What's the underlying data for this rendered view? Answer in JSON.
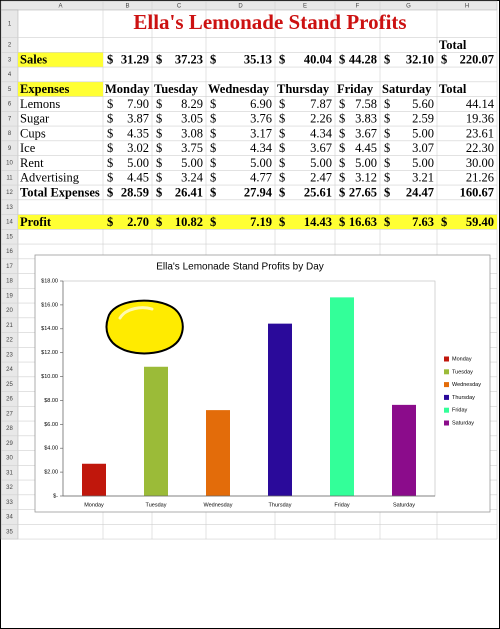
{
  "sheet": {
    "columns": [
      "A",
      "B",
      "C",
      "D",
      "E",
      "F",
      "G",
      "H"
    ],
    "row_numbers": [
      1,
      2,
      3,
      4,
      5,
      6,
      7,
      8,
      9,
      10,
      11,
      12,
      13,
      14,
      15,
      16,
      17,
      18,
      19,
      20,
      21,
      22,
      23,
      24,
      25,
      26,
      27,
      28,
      29,
      30,
      31,
      32,
      33,
      34,
      35
    ],
    "title": "Ella's Lemonade Stand Profits",
    "grid": [
      [
        null,
        null,
        null,
        null,
        null,
        null,
        null,
        "Total"
      ],
      [
        "Sales",
        [
          "$",
          "31.29"
        ],
        [
          "$",
          "37.23"
        ],
        [
          "$",
          "35.13"
        ],
        [
          "$",
          "40.04"
        ],
        [
          "$",
          "44.28"
        ],
        [
          "$",
          "32.10"
        ],
        [
          "$",
          "220.07"
        ]
      ],
      [
        null,
        null,
        null,
        null,
        null,
        null,
        null,
        null
      ],
      [
        "Expenses",
        "Monday",
        "Tuesday",
        "Wednesday",
        "Thursday",
        "Friday",
        "Saturday",
        "Total"
      ],
      [
        "Lemons",
        [
          "$",
          "7.90"
        ],
        [
          "$",
          "8.29"
        ],
        [
          "$",
          "6.90"
        ],
        [
          "$",
          "7.87"
        ],
        [
          "$",
          "7.58"
        ],
        [
          "$",
          "5.60"
        ],
        "44.14"
      ],
      [
        "Sugar",
        [
          "$",
          "3.87"
        ],
        [
          "$",
          "3.05"
        ],
        [
          "$",
          "3.76"
        ],
        [
          "$",
          "2.26"
        ],
        [
          "$",
          "3.83"
        ],
        [
          "$",
          "2.59"
        ],
        "19.36"
      ],
      [
        "Cups",
        [
          "$",
          "4.35"
        ],
        [
          "$",
          "3.08"
        ],
        [
          "$",
          "3.17"
        ],
        [
          "$",
          "4.34"
        ],
        [
          "$",
          "3.67"
        ],
        [
          "$",
          "5.00"
        ],
        "23.61"
      ],
      [
        "Ice",
        [
          "$",
          "3.02"
        ],
        [
          "$",
          "3.75"
        ],
        [
          "$",
          "4.34"
        ],
        [
          "$",
          "3.67"
        ],
        [
          "$",
          "4.45"
        ],
        [
          "$",
          "3.07"
        ],
        "22.30"
      ],
      [
        "Rent",
        [
          "$",
          "5.00"
        ],
        [
          "$",
          "5.00"
        ],
        [
          "$",
          "5.00"
        ],
        [
          "$",
          "5.00"
        ],
        [
          "$",
          "5.00"
        ],
        [
          "$",
          "5.00"
        ],
        "30.00"
      ],
      [
        "Advertising",
        [
          "$",
          "4.45"
        ],
        [
          "$",
          "3.24"
        ],
        [
          "$",
          "4.77"
        ],
        [
          "$",
          "2.47"
        ],
        [
          "$",
          "3.12"
        ],
        [
          "$",
          "3.21"
        ],
        "21.26"
      ],
      [
        "Total Expenses",
        [
          "$",
          "28.59"
        ],
        [
          "$",
          "26.41"
        ],
        [
          "$",
          "27.94"
        ],
        [
          "$",
          "25.61"
        ],
        [
          "$",
          "27.65"
        ],
        [
          "$",
          "24.47"
        ],
        "160.67"
      ],
      [
        null,
        null,
        null,
        null,
        null,
        null,
        null,
        null
      ],
      [
        "Profit",
        [
          "$",
          "2.70"
        ],
        [
          "$",
          "10.82"
        ],
        [
          "$",
          "7.19"
        ],
        [
          "$",
          "14.43"
        ],
        [
          "$",
          "16.63"
        ],
        [
          "$",
          "7.63"
        ],
        [
          "$",
          "59.40"
        ]
      ]
    ]
  },
  "chart_data": {
    "type": "bar",
    "title": "Ella's Lemonade Stand Profits by Day",
    "categories": [
      "Monday",
      "Tuesday",
      "Wednesday",
      "Thursday",
      "Friday",
      "Saturday"
    ],
    "values": [
      2.7,
      10.82,
      7.19,
      14.43,
      16.63,
      7.63
    ],
    "colors": [
      "#c0170c",
      "#9bbb38",
      "#e36c0a",
      "#2a0a9a",
      "#33ff99",
      "#8b0c8b"
    ],
    "ylim": [
      0,
      18
    ],
    "yticks": [
      {
        "value": 0,
        "label": "$-"
      },
      {
        "value": 2,
        "label": "$2.00"
      },
      {
        "value": 4,
        "label": "$4.00"
      },
      {
        "value": 6,
        "label": "$6.00"
      },
      {
        "value": 8,
        "label": "$8.00"
      },
      {
        "value": 10,
        "label": "$10.00"
      },
      {
        "value": 12,
        "label": "$12.00"
      },
      {
        "value": 14,
        "label": "$14.00"
      },
      {
        "value": 16,
        "label": "$16.00"
      },
      {
        "value": 18,
        "label": "$18.00"
      }
    ],
    "legend": "right"
  }
}
